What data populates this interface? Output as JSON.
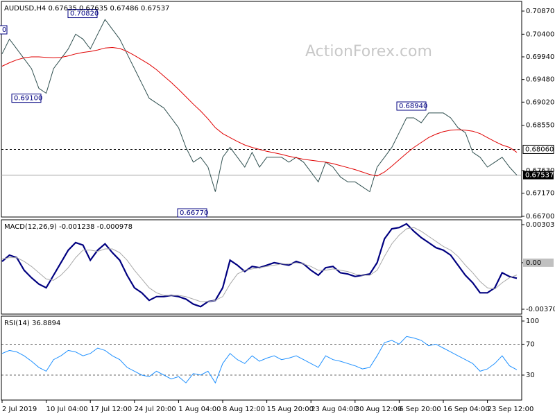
{
  "chart_data": [
    {
      "type": "line",
      "title": "AUDUSD,H4 0.67635 0.67635 0.67486 0.67537",
      "watermark": "ActionForex.com",
      "series": [
        {
          "color": "#2f4f4f",
          "values": [
            0.7,
            0.703,
            0.701,
            0.699,
            0.697,
            0.693,
            0.692,
            0.697,
            0.699,
            0.701,
            0.704,
            0.703,
            0.701,
            0.704,
            0.707,
            0.705,
            0.703,
            0.7,
            0.697,
            0.694,
            0.691,
            0.69,
            0.689,
            0.687,
            0.685,
            0.681,
            0.678,
            0.679,
            0.677,
            0.672,
            0.679,
            0.681,
            0.679,
            0.677,
            0.68,
            0.677,
            0.679,
            0.679,
            0.679,
            0.678,
            0.679,
            0.678,
            0.676,
            0.674,
            0.678,
            0.677,
            0.675,
            0.674,
            0.674,
            0.673,
            0.672,
            0.677,
            0.679,
            0.681,
            0.684,
            0.687,
            0.687,
            0.686,
            0.688,
            0.688,
            0.688,
            0.687,
            0.685,
            0.684,
            0.68,
            0.679,
            0.677,
            0.678,
            0.679,
            0.677,
            0.67537
          ]
        },
        {
          "color": "#e00000",
          "values": [
            0.6975,
            0.6982,
            0.6988,
            0.6992,
            0.6994,
            0.6994,
            0.6993,
            0.6992,
            0.6993,
            0.6996,
            0.7,
            0.7003,
            0.7005,
            0.7008,
            0.7012,
            0.7013,
            0.7011,
            0.7005,
            0.6997,
            0.6988,
            0.6979,
            0.6968,
            0.6955,
            0.6942,
            0.6928,
            0.6913,
            0.6898,
            0.6884,
            0.6868,
            0.685,
            0.6838,
            0.683,
            0.6822,
            0.6815,
            0.681,
            0.6806,
            0.6802,
            0.6799,
            0.6796,
            0.6792,
            0.6789,
            0.6786,
            0.6784,
            0.6782,
            0.678,
            0.6777,
            0.6773,
            0.6769,
            0.6765,
            0.676,
            0.6755,
            0.6752,
            0.676,
            0.6772,
            0.6785,
            0.6798,
            0.681,
            0.682,
            0.683,
            0.6837,
            0.6842,
            0.6845,
            0.6846,
            0.6845,
            0.6843,
            0.6838,
            0.683,
            0.6822,
            0.6815,
            0.681,
            0.68
          ]
        }
      ],
      "ylim": [
        0.66686,
        0.71067
      ],
      "yticks": [
        {
          "value": 0.7087,
          "label": "0.70870"
        },
        {
          "value": 0.704,
          "label": "0.70400"
        },
        {
          "value": 0.6994,
          "label": "0.69940"
        },
        {
          "value": 0.6948,
          "label": "0.69480"
        },
        {
          "value": 0.6902,
          "label": "0.69020"
        },
        {
          "value": 0.6855,
          "label": "0.68550"
        },
        {
          "value": 0.6763,
          "label": "0.67630"
        },
        {
          "value": 0.6717,
          "label": "0.67170"
        },
        {
          "value": 0.667,
          "label": "0.66700"
        }
      ],
      "levels": [
        {
          "value": 0.6806,
          "label": "0.68060",
          "style": "dashed"
        }
      ],
      "last_price": 0.67537,
      "cut_label": "0",
      "annotations": [
        {
          "value": 0.7082,
          "label": "0.70820"
        },
        {
          "value": 0.691,
          "label": "0.69100"
        },
        {
          "value": 0.6677,
          "label": "0.66770"
        },
        {
          "value": 0.6894,
          "label": "0.68940"
        }
      ]
    },
    {
      "type": "line",
      "title": "MACD(12,26,9) -0.001238 -0.000978",
      "series": [
        {
          "color": "#000080",
          "values": [
            0.0001,
            0.0006,
            0.0004,
            -0.0006,
            -0.0012,
            -0.0017,
            -0.002,
            -0.001,
            0.0,
            0.001,
            0.0016,
            0.0014,
            0.0002,
            0.001,
            0.0015,
            0.0008,
            0.0002,
            -0.001,
            -0.002,
            -0.0024,
            -0.003,
            -0.0027,
            -0.0027,
            -0.0026,
            -0.0027,
            -0.0029,
            -0.0033,
            -0.0035,
            -0.0031,
            -0.003,
            -0.002,
            0.0002,
            -0.0002,
            -0.0007,
            -0.0003,
            -0.0004,
            -0.0002,
            0.0,
            -0.0001,
            -0.0002,
            0.0001,
            -0.0001,
            -0.0006,
            -0.001,
            -0.0004,
            -0.0003,
            -0.0008,
            -0.0009,
            -0.0011,
            -0.001,
            -0.0009,
            0.0,
            0.0019,
            0.0027,
            0.0028,
            0.0031,
            0.0025,
            0.002,
            0.0016,
            0.0012,
            0.001,
            0.0006,
            -0.0002,
            -0.001,
            -0.0016,
            -0.0024,
            -0.0024,
            -0.002,
            -0.0008,
            -0.0011,
            -0.001238
          ]
        },
        {
          "color": "#a9a9a9",
          "values": [
            0.0003,
            0.0004,
            0.0004,
            0.0001,
            -0.0003,
            -0.0008,
            -0.0013,
            -0.0014,
            -0.001,
            -0.0004,
            0.0004,
            0.001,
            0.001,
            0.0009,
            0.0011,
            0.0011,
            0.0008,
            0.0002,
            -0.0006,
            -0.0013,
            -0.002,
            -0.0024,
            -0.0026,
            -0.0026,
            -0.0026,
            -0.0027,
            -0.0029,
            -0.0031,
            -0.0031,
            -0.003,
            -0.0027,
            -0.0017,
            -0.0009,
            -0.0006,
            -0.0005,
            -0.0004,
            -0.0003,
            -0.0002,
            -0.0001,
            -0.0001,
            0.0,
            -0.0001,
            -0.0003,
            -0.0006,
            -0.0006,
            -0.0005,
            -0.0006,
            -0.0007,
            -0.0009,
            -0.001,
            -0.001,
            -0.0006,
            0.0005,
            0.0015,
            0.0022,
            0.0027,
            0.0028,
            0.0025,
            0.0021,
            0.0017,
            0.0013,
            0.001,
            0.0005,
            -0.0002,
            -0.0008,
            -0.0015,
            -0.002,
            -0.0021,
            -0.0016,
            -0.0012,
            -0.000978
          ]
        }
      ],
      "ylim": [
        -0.004093,
        0.003418
      ],
      "yticks": [
        0.003031,
        {
          "value": 0,
          "label": "0.00"
        },
        -0.003706
      ]
    },
    {
      "type": "line",
      "title": "RSI(14) 36.8894",
      "categories": [
        "2 Jul 2019",
        null,
        null,
        null,
        null,
        null,
        "10 Jul 04:00",
        null,
        null,
        null,
        null,
        null,
        "17 Jul 12:00",
        null,
        null,
        null,
        null,
        null,
        "24 Jul 20:00",
        null,
        null,
        null,
        null,
        null,
        "1 Aug 04:00",
        null,
        null,
        null,
        null,
        null,
        "8 Aug 12:00",
        null,
        null,
        null,
        null,
        null,
        "15 Aug 20:00",
        null,
        null,
        null,
        null,
        null,
        "23 Aug 04:00",
        null,
        null,
        null,
        null,
        null,
        "30 Aug 12:00",
        null,
        null,
        null,
        null,
        null,
        "6 Sep 20:00",
        null,
        null,
        null,
        null,
        null,
        "16 Sep 04:00",
        null,
        null,
        null,
        null,
        null,
        "23 Sep 12:00",
        null,
        null,
        null,
        null
      ],
      "series": [
        {
          "color": "#1e90ff",
          "values": [
            58,
            62,
            60,
            55,
            48,
            40,
            35,
            50,
            55,
            62,
            60,
            55,
            58,
            65,
            62,
            55,
            50,
            40,
            35,
            30,
            28,
            35,
            30,
            25,
            28,
            20,
            32,
            30,
            35,
            20,
            45,
            58,
            50,
            45,
            55,
            48,
            52,
            55,
            50,
            52,
            55,
            50,
            45,
            40,
            55,
            50,
            48,
            45,
            42,
            38,
            40,
            55,
            72,
            75,
            70,
            80,
            78,
            75,
            68,
            70,
            65,
            60,
            55,
            50,
            45,
            35,
            38,
            45,
            55,
            42,
            36.8894
          ]
        }
      ],
      "ylim": [
        -2.3,
        106.3
      ],
      "yticks": [
        100,
        70,
        30
      ],
      "levels": [
        {
          "value": 70,
          "style": "dashed"
        },
        {
          "value": 30,
          "style": "dashed"
        }
      ]
    }
  ]
}
